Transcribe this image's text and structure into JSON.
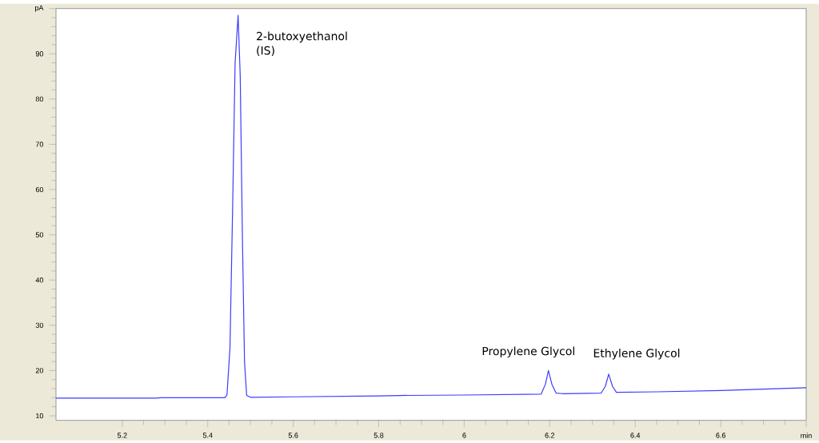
{
  "chart_data": {
    "type": "line",
    "x": [
      5.045,
      5.28,
      5.29,
      5.44,
      5.445,
      5.452,
      5.458,
      5.464,
      5.471,
      5.476,
      5.481,
      5.486,
      5.491,
      5.5,
      5.6,
      5.8,
      5.85,
      6.0,
      6.18,
      6.19,
      6.197,
      6.205,
      6.215,
      6.23,
      6.32,
      6.33,
      6.338,
      6.347,
      6.356,
      6.45,
      6.6,
      6.7,
      6.8
    ],
    "series": [
      {
        "color": "#3c3cff",
        "values": [
          13.9,
          13.9,
          14.0,
          14.0,
          14.6,
          25,
          55,
          88,
          98.5,
          85,
          50,
          22,
          14.5,
          14.1,
          14.2,
          14.4,
          14.5,
          14.6,
          14.8,
          17,
          20,
          17,
          15,
          14.9,
          15.0,
          16.5,
          19.2,
          16.5,
          15.2,
          15.3,
          15.6,
          15.9,
          16.2
        ]
      }
    ],
    "xlim": [
      5.045,
      6.8
    ],
    "ylim": [
      9,
      100
    ],
    "xticks": [
      5.2,
      5.4,
      5.6,
      5.8,
      6,
      6.2,
      6.4,
      6.6,
      {
        "value": 6.8,
        "label": "min"
      }
    ],
    "yticks": [
      10,
      20,
      30,
      40,
      50,
      60,
      70,
      80,
      90,
      {
        "value": 100,
        "label": "pA"
      }
    ],
    "grid": false,
    "marker": "none",
    "line_style": "solid",
    "annotations": [
      {
        "text": "2-butoxyethanol (IS)",
        "x": 5.471,
        "y": 98.5
      },
      {
        "text": "Propylene Glycol",
        "x": 6.197,
        "y": 20
      },
      {
        "text": "Ethylene Glycol",
        "x": 6.338,
        "y": 19.2
      }
    ]
  }
}
